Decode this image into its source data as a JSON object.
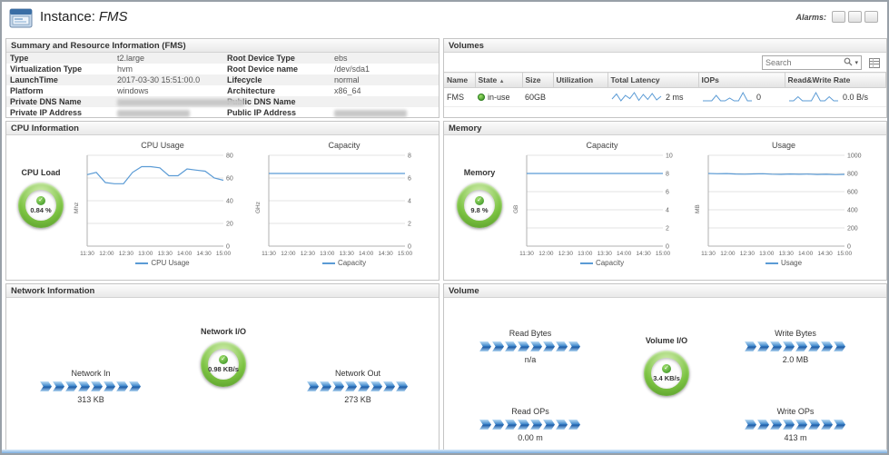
{
  "header": {
    "title_prefix": "Instance:",
    "title_value": "FMS",
    "alarms_label": "Alarms:"
  },
  "icons": {
    "check": "✓",
    "sort_asc": "▲",
    "caret_down": "▾"
  },
  "panels": {
    "summary": {
      "title": "Summary and Resource Information (FMS)",
      "rows": [
        {
          "k1": "Type",
          "v1": "t2.large",
          "k2": "Root Device Type",
          "v2": "ebs"
        },
        {
          "k1": "Virtualization Type",
          "v1": "hvm",
          "k2": "Root Device name",
          "v2": "/dev/sda1"
        },
        {
          "k1": "LaunchTime",
          "v1": "2017-03-30 15:51:00.0",
          "k2": "Lifecycle",
          "v2": "normal"
        },
        {
          "k1": "Platform",
          "v1": "windows",
          "k2": "Architecture",
          "v2": "x86_64"
        },
        {
          "k1": "Private DNS Name",
          "v1": "",
          "k2": "Public DNS Name",
          "v2": ""
        },
        {
          "k1": "Private IP Address",
          "v1": "",
          "k2": "Public IP Address",
          "v2": ""
        }
      ]
    },
    "volumes": {
      "title": "Volumes",
      "search_placeholder": "Search",
      "columns": [
        "Name",
        "State",
        "Size",
        "Utilization",
        "Total Latency",
        "IOPs",
        "Read&Write Rate"
      ],
      "row": {
        "name": "FMS",
        "state": "in-use",
        "size": "60GB",
        "utilization": "",
        "latency_value": "2 ms",
        "iops_value": "0",
        "rw_value": "0.0 B/s",
        "latency_spark": [
          1.6,
          2.7,
          1.2,
          2.4,
          1.7,
          3.0,
          1.3,
          2.6,
          1.5,
          2.8,
          1.4,
          2.2
        ],
        "iops_spark": [
          0,
          0,
          0,
          2,
          0,
          0,
          1,
          0,
          0,
          3,
          0,
          0
        ],
        "rw_spark": [
          0,
          0,
          1,
          0,
          0,
          0,
          2,
          0,
          0,
          1,
          0,
          0
        ]
      }
    },
    "cpu": {
      "title": "CPU Information",
      "gauge": {
        "label": "CPU Load",
        "value": "0.84 %"
      },
      "x_ticks": [
        "11:30",
        "12:00",
        "12:30",
        "13:00",
        "13:30",
        "14:00",
        "14:30",
        "15:00"
      ],
      "charts": [
        {
          "title": "CPU Usage",
          "unit": "Mhz",
          "legend": "CPU Usage",
          "yticks": [
            0,
            20,
            40,
            60,
            80
          ],
          "values": [
            63,
            65,
            56,
            55,
            55,
            65,
            70,
            70,
            69,
            62,
            62,
            68,
            67,
            66,
            60,
            58
          ]
        },
        {
          "title": "Capacity",
          "unit": "GHz",
          "legend": "Capacity",
          "yticks": [
            0,
            2,
            4,
            6,
            8
          ],
          "values": [
            6.4,
            6.4,
            6.4,
            6.4,
            6.4,
            6.4,
            6.4,
            6.4,
            6.4,
            6.4,
            6.4,
            6.4,
            6.4,
            6.4,
            6.4,
            6.4
          ]
        }
      ]
    },
    "memory": {
      "title": "Memory",
      "gauge": {
        "label": "Memory",
        "value": "9.8 %"
      },
      "x_ticks": [
        "11:30",
        "12:00",
        "12:30",
        "13:00",
        "13:30",
        "14:00",
        "14:30",
        "15:00"
      ],
      "charts": [
        {
          "title": "Capacity",
          "unit": "GB",
          "legend": "Capacity",
          "yticks": [
            0,
            2,
            4,
            6,
            8,
            10
          ],
          "values": [
            8,
            8,
            8,
            8,
            8,
            8,
            8,
            8,
            8,
            8,
            8,
            8,
            8,
            8,
            8,
            8
          ]
        },
        {
          "title": "Usage",
          "unit": "MB",
          "legend": "Usage",
          "yticks": [
            0,
            200,
            400,
            600,
            800,
            1000
          ],
          "values": [
            800,
            797,
            799,
            794,
            792,
            795,
            797,
            792,
            790,
            794,
            791,
            793,
            789,
            791,
            787,
            790
          ]
        }
      ]
    },
    "network": {
      "title": "Network Information",
      "in_label": "Network In",
      "in_value": "313 KB",
      "gauge": {
        "label": "Network I/O",
        "value": "0.98 KB/s"
      },
      "out_label": "Network Out",
      "out_value": "273 KB"
    },
    "volume_io": {
      "title": "Volume",
      "read_bytes_label": "Read Bytes",
      "read_bytes_value": "n/a",
      "write_bytes_label": "Write Bytes",
      "write_bytes_value": "2.0 MB",
      "read_ops_label": "Read OPs",
      "read_ops_value": "0.00 m",
      "write_ops_label": "Write OPs",
      "write_ops_value": "413 m",
      "gauge": {
        "label": "Volume I/O",
        "value": "3.4 KB/s"
      }
    }
  }
}
